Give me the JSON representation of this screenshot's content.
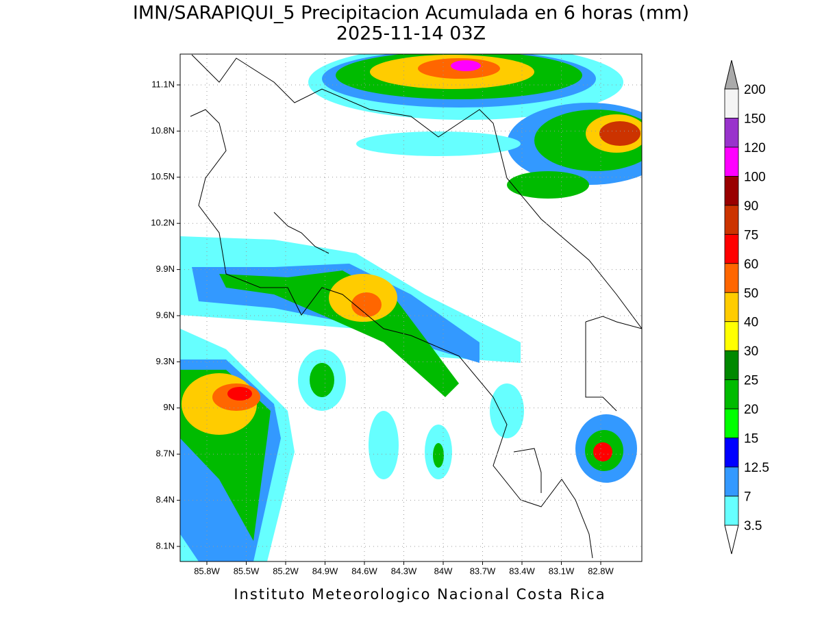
{
  "title": "IMN/SARAPIQUI_5 Precipitacion Acumulada en 6 horas (mm)",
  "subtitle": "2025-11-14 03Z",
  "map": {
    "lat_labels": [
      "11.1N",
      "10.8N",
      "10.5N",
      "10.2N",
      "9.9N",
      "9.6N",
      "9.3N",
      "9N",
      "8.7N",
      "8.4N",
      "8.1N"
    ],
    "lon_labels": [
      "85.8W",
      "85.5W",
      "85.2W",
      "84.9W",
      "84.6W",
      "84.3W",
      "84W",
      "83.7W",
      "83.4W",
      "83.1W",
      "82.8W"
    ]
  },
  "colorbar": {
    "labels": [
      200,
      150,
      120,
      100,
      90,
      75,
      60,
      50,
      40,
      30,
      25,
      20,
      15,
      12.5,
      7,
      3.5
    ],
    "colors": [
      "#f4f4f4",
      "#9933cc",
      "#ff00ff",
      "#990000",
      "#cc3300",
      "#ff0000",
      "#ff6600",
      "#ffcc00",
      "#ffff00",
      "#008800",
      "#00bb00",
      "#00ff00",
      "#0000ff",
      "#3399ff",
      "#66ffff"
    ]
  },
  "footer": "Instituto Meteorologico Nacional Costa Rica"
}
